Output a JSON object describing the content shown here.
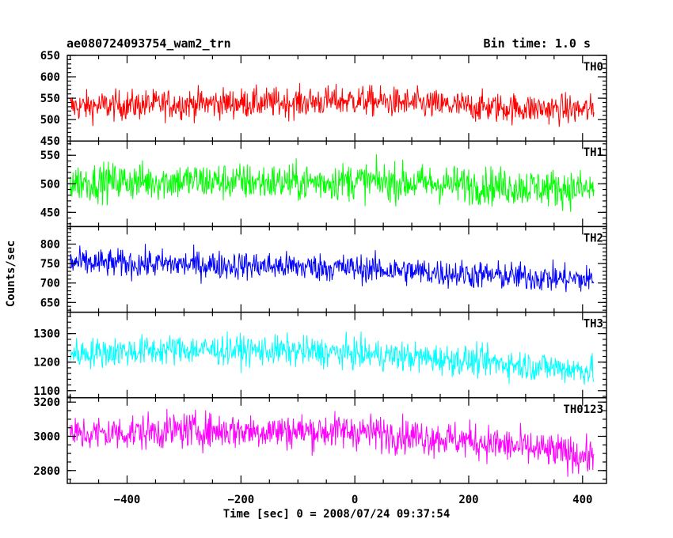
{
  "header": {
    "title": "ae080724093754_wam2_trn",
    "bin_time": "Bin time: 1.0 s"
  },
  "chart_data": {
    "type": "line",
    "x_label": "Time [sec] 0 = 2008/07/24 09:37:54",
    "y_label": "Counts/sec",
    "x_range": [
      -505,
      442
    ],
    "x_ticks": [
      -400,
      -200,
      0,
      200,
      400
    ],
    "x_tick_labels": [
      "−400",
      "−200",
      "0",
      "200",
      "400"
    ],
    "x_minor_step": 50,
    "x_data": {
      "start": -500,
      "end": 420,
      "step": 1
    },
    "panels": [
      {
        "name": "TH0",
        "color": "#ff0000",
        "ylim": [
          450,
          650
        ],
        "y_ticks": [
          450,
          500,
          550,
          600,
          650
        ],
        "y_minor_step": 10,
        "trend": [
          [
            -500,
            530
          ],
          [
            -300,
            537
          ],
          [
            -100,
            540
          ],
          [
            0,
            545
          ],
          [
            200,
            530
          ],
          [
            420,
            522
          ]
        ],
        "noise_amplitude": 32
      },
      {
        "name": "TH1",
        "color": "#00ff00",
        "ylim": [
          425,
          575
        ],
        "y_ticks": [
          450,
          500,
          550
        ],
        "y_minor_step": 10,
        "trend": [
          [
            -500,
            503
          ],
          [
            -300,
            505
          ],
          [
            -100,
            502
          ],
          [
            0,
            505
          ],
          [
            200,
            498
          ],
          [
            420,
            490
          ]
        ],
        "noise_amplitude": 30
      },
      {
        "name": "TH2",
        "color": "#0000ff",
        "ylim": [
          625,
          845
        ],
        "y_ticks": [
          650,
          700,
          750,
          800
        ],
        "y_minor_step": 10,
        "trend": [
          [
            -500,
            752
          ],
          [
            -300,
            748
          ],
          [
            -100,
            742
          ],
          [
            0,
            738
          ],
          [
            200,
            722
          ],
          [
            420,
            708
          ]
        ],
        "noise_amplitude": 33
      },
      {
        "name": "TH3",
        "color": "#00ffff",
        "ylim": [
          1075,
          1375
        ],
        "y_ticks": [
          1100,
          1200,
          1300
        ],
        "y_minor_step": 20,
        "trend": [
          [
            -500,
            1230
          ],
          [
            -300,
            1245
          ],
          [
            -100,
            1238
          ],
          [
            0,
            1230
          ],
          [
            200,
            1205
          ],
          [
            420,
            1170
          ]
        ],
        "noise_amplitude": 48
      },
      {
        "name": "TH0123",
        "color": "#ff00ff",
        "ylim": [
          2725,
          3225
        ],
        "y_ticks": [
          2800,
          3000,
          3200
        ],
        "y_minor_step": 50,
        "trend": [
          [
            -500,
            3010
          ],
          [
            -300,
            3035
          ],
          [
            -100,
            3030
          ],
          [
            0,
            3030
          ],
          [
            200,
            2975
          ],
          [
            420,
            2880
          ]
        ],
        "noise_amplitude": 95
      }
    ]
  }
}
